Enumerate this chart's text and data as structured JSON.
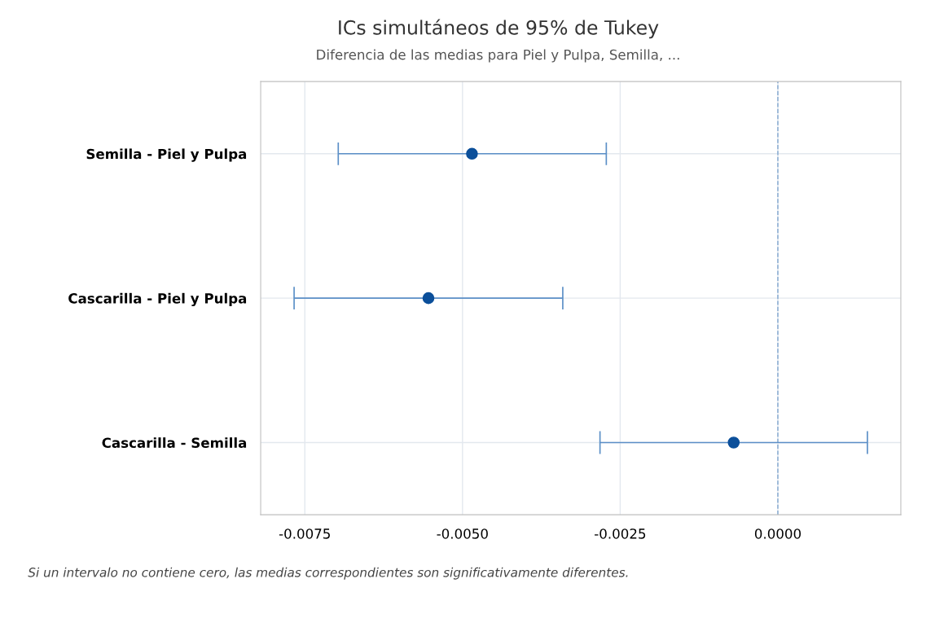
{
  "chart_data": {
    "type": "scatter",
    "orientation": "horizontal",
    "title": "ICs simultáneos de 95% de Tukey",
    "subtitle": "Diferencia de las medias para Piel y Pulpa, Semilla, ...",
    "categories": [
      "Semilla - Piel y Pulpa",
      "Cascarilla - Piel y Pulpa",
      "Cascarilla - Semilla"
    ],
    "series": [
      {
        "color": "#0b4f9a",
        "values": [
          -0.00485,
          -0.00554,
          -0.0007
        ],
        "errors": [
          [
            -0.00697,
            -0.00272
          ],
          [
            -0.00767,
            -0.00341
          ],
          [
            -0.00282,
            0.00142
          ]
        ]
      }
    ],
    "xlim": [
      -0.0082,
      0.00195
    ],
    "xticks": [
      {
        "value": -0.0075,
        "label": "-0.0075"
      },
      {
        "value": -0.005,
        "label": "-0.0050"
      },
      {
        "value": -0.0025,
        "label": "-0.0025"
      },
      {
        "value": 0,
        "label": "0.0000"
      }
    ],
    "ref_lines": [
      {
        "axis": "x",
        "value": 0,
        "color": "#7fa6cf",
        "line_style": "dashed"
      }
    ],
    "grid": true,
    "marker": "circle",
    "annotations": [
      "Si un intervalo no contiene cero, las medias correspondientes son significativamente diferentes."
    ]
  }
}
